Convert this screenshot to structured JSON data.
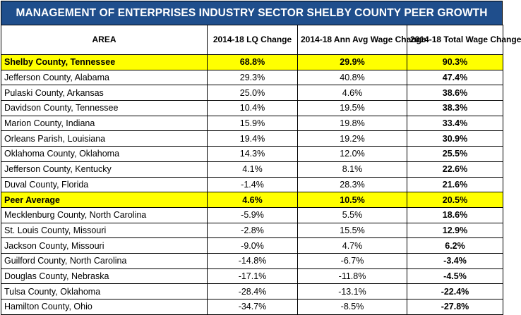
{
  "title": "MANAGEMENT OF ENTERPRISES INDUSTRY SECTOR SHELBY COUNTY  PEER GROWTH",
  "columns": [
    "AREA",
    "2014-18 LQ Change",
    "2014-18 Ann Avg Wage Change",
    "2014-18 Total Wage Change"
  ],
  "rows": [
    {
      "area": "Shelby County, Tennessee",
      "lq": "68.8%",
      "ann": "29.9%",
      "total": "90.3%",
      "highlight": true
    },
    {
      "area": "Jefferson County, Alabama",
      "lq": "29.3%",
      "ann": "40.8%",
      "total": "47.4%",
      "highlight": false
    },
    {
      "area": "Pulaski County, Arkansas",
      "lq": "25.0%",
      "ann": "4.6%",
      "total": "38.6%",
      "highlight": false
    },
    {
      "area": "Davidson County, Tennessee",
      "lq": "10.4%",
      "ann": "19.5%",
      "total": "38.3%",
      "highlight": false
    },
    {
      "area": "Marion County, Indiana",
      "lq": "15.9%",
      "ann": "19.8%",
      "total": "33.4%",
      "highlight": false
    },
    {
      "area": "Orleans Parish, Louisiana",
      "lq": "19.4%",
      "ann": "19.2%",
      "total": "30.9%",
      "highlight": false
    },
    {
      "area": "Oklahoma County, Oklahoma",
      "lq": "14.3%",
      "ann": "12.0%",
      "total": "25.5%",
      "highlight": false
    },
    {
      "area": "Jefferson County, Kentucky",
      "lq": "4.1%",
      "ann": "8.1%",
      "total": "22.6%",
      "highlight": false
    },
    {
      "area": "Duval County, Florida",
      "lq": "-1.4%",
      "ann": "28.3%",
      "total": "21.6%",
      "highlight": false
    },
    {
      "area": "Peer Average",
      "lq": "4.6%",
      "ann": "10.5%",
      "total": "20.5%",
      "highlight": true
    },
    {
      "area": "Mecklenburg County, North Carolina",
      "lq": "-5.9%",
      "ann": "5.5%",
      "total": "18.6%",
      "highlight": false
    },
    {
      "area": "St. Louis County, Missouri",
      "lq": "-2.8%",
      "ann": "15.5%",
      "total": "12.9%",
      "highlight": false
    },
    {
      "area": "Jackson County, Missouri",
      "lq": "-9.0%",
      "ann": "4.7%",
      "total": "6.2%",
      "highlight": false
    },
    {
      "area": "Guilford County, North Carolina",
      "lq": "-14.8%",
      "ann": "-6.7%",
      "total": "-3.4%",
      "highlight": false
    },
    {
      "area": "Douglas County, Nebraska",
      "lq": "-17.1%",
      "ann": "-11.8%",
      "total": "-4.5%",
      "highlight": false
    },
    {
      "area": "Tulsa County, Oklahoma",
      "lq": "-28.4%",
      "ann": "-13.1%",
      "total": "-22.4%",
      "highlight": false
    },
    {
      "area": "Hamilton County, Ohio",
      "lq": "-34.7%",
      "ann": "-8.5%",
      "total": "-27.8%",
      "highlight": false
    }
  ],
  "colors": {
    "title_bg": "#1F4E8C",
    "title_text": "#FFFFFF",
    "highlight_bg": "#FFFF00",
    "border": "#000000"
  }
}
